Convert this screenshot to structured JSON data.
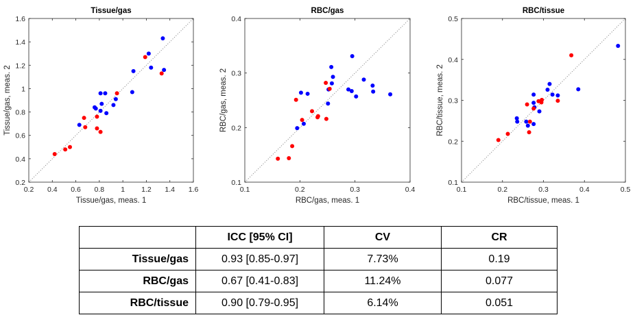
{
  "chart_data": [
    {
      "type": "scatter",
      "title": "Tissue/gas",
      "xlabel": "Tissue/gas, meas. 1",
      "ylabel": "Tissue/gas, meas. 2",
      "xlim": [
        0.2,
        1.6
      ],
      "ylim": [
        0.2,
        1.6
      ],
      "xticks": [
        "0.2",
        "0.4",
        "0.6",
        "0.8",
        "1",
        "1.2",
        "1.4",
        "1.6"
      ],
      "yticks": [
        "0.2",
        "0.4",
        "0.6",
        "0.8",
        "1",
        "1.2",
        "1.4",
        "1.6"
      ],
      "identity_line": true,
      "series": [
        {
          "name": "blue",
          "color": "#0000ff",
          "points": [
            [
              1.34,
              1.43
            ],
            [
              1.22,
              1.3
            ],
            [
              1.24,
              1.18
            ],
            [
              1.35,
              1.16
            ],
            [
              1.09,
              1.15
            ],
            [
              1.08,
              0.97
            ],
            [
              0.81,
              0.96
            ],
            [
              0.85,
              0.96
            ],
            [
              0.82,
              0.87
            ],
            [
              0.92,
              0.86
            ],
            [
              0.94,
              0.91
            ],
            [
              0.76,
              0.84
            ],
            [
              0.77,
              0.83
            ],
            [
              0.81,
              0.81
            ],
            [
              0.86,
              0.79
            ],
            [
              0.63,
              0.69
            ]
          ]
        },
        {
          "name": "red",
          "color": "#ff0000",
          "points": [
            [
              1.19,
              1.27
            ],
            [
              1.33,
              1.13
            ],
            [
              0.95,
              0.96
            ],
            [
              0.67,
              0.75
            ],
            [
              0.78,
              0.76
            ],
            [
              0.68,
              0.67
            ],
            [
              0.78,
              0.66
            ],
            [
              0.81,
              0.63
            ],
            [
              0.55,
              0.5
            ],
            [
              0.51,
              0.48
            ],
            [
              0.42,
              0.44
            ]
          ]
        }
      ]
    },
    {
      "type": "scatter",
      "title": "RBC/gas",
      "xlabel": "RBC/gas, meas. 1",
      "ylabel": "RBC/gas, meas. 2",
      "xlim": [
        0.1,
        0.4
      ],
      "ylim": [
        0.1,
        0.4
      ],
      "xticks": [
        "0.1",
        "0.2",
        "0.3",
        "0.4"
      ],
      "yticks": [
        "0.1",
        "0.2",
        "0.3",
        "0.4"
      ],
      "identity_line": true,
      "series": [
        {
          "name": "blue",
          "color": "#0000ff",
          "points": [
            [
              0.295,
              0.331
            ],
            [
              0.257,
              0.311
            ],
            [
              0.26,
              0.293
            ],
            [
              0.316,
              0.288
            ],
            [
              0.252,
              0.27
            ],
            [
              0.258,
              0.281
            ],
            [
              0.288,
              0.27
            ],
            [
              0.294,
              0.267
            ],
            [
              0.332,
              0.277
            ],
            [
              0.333,
              0.266
            ],
            [
              0.364,
              0.261
            ],
            [
              0.302,
              0.257
            ],
            [
              0.202,
              0.264
            ],
            [
              0.214,
              0.262
            ],
            [
              0.251,
              0.244
            ],
            [
              0.207,
              0.207
            ],
            [
              0.195,
              0.199
            ]
          ]
        },
        {
          "name": "red",
          "color": "#ff0000",
          "points": [
            [
              0.247,
              0.282
            ],
            [
              0.254,
              0.271
            ],
            [
              0.193,
              0.251
            ],
            [
              0.222,
              0.23
            ],
            [
              0.233,
              0.221
            ],
            [
              0.232,
              0.219
            ],
            [
              0.248,
              0.216
            ],
            [
              0.204,
              0.214
            ],
            [
              0.186,
              0.166
            ],
            [
              0.18,
              0.144
            ],
            [
              0.16,
              0.143
            ]
          ]
        }
      ]
    },
    {
      "type": "scatter",
      "title": "RBC/tissue",
      "xlabel": "RBC/tissue, meas. 1",
      "ylabel": "RBC/tissue, meas. 2",
      "xlim": [
        0.1,
        0.5
      ],
      "ylim": [
        0.1,
        0.5
      ],
      "xticks": [
        "0.1",
        "0.2",
        "0.3",
        "0.4",
        "0.5"
      ],
      "yticks": [
        "0.1",
        "0.2",
        "0.3",
        "0.4",
        "0.5"
      ],
      "identity_line": true,
      "series": [
        {
          "name": "blue",
          "color": "#0000ff",
          "points": [
            [
              0.482,
              0.433
            ],
            [
              0.385,
              0.327
            ],
            [
              0.315,
              0.34
            ],
            [
              0.31,
              0.326
            ],
            [
              0.276,
              0.314
            ],
            [
              0.322,
              0.314
            ],
            [
              0.335,
              0.312
            ],
            [
              0.276,
              0.294
            ],
            [
              0.278,
              0.283
            ],
            [
              0.29,
              0.273
            ],
            [
              0.235,
              0.256
            ],
            [
              0.236,
              0.248
            ],
            [
              0.258,
              0.248
            ],
            [
              0.262,
              0.238
            ],
            [
              0.276,
              0.242
            ]
          ]
        },
        {
          "name": "red",
          "color": "#ff0000",
          "points": [
            [
              0.368,
              0.41
            ],
            [
              0.335,
              0.299
            ],
            [
              0.288,
              0.298
            ],
            [
              0.296,
              0.301
            ],
            [
              0.295,
              0.295
            ],
            [
              0.26,
              0.29
            ],
            [
              0.276,
              0.28
            ],
            [
              0.267,
              0.248
            ],
            [
              0.265,
              0.222
            ],
            [
              0.213,
              0.218
            ],
            [
              0.19,
              0.203
            ]
          ]
        }
      ]
    }
  ],
  "table": {
    "headers": [
      "",
      "ICC [95% CI]",
      "CV",
      "CR"
    ],
    "rows": [
      {
        "label": "Tissue/gas",
        "icc": "0.93 [0.85-0.97]",
        "cv": "7.73%",
        "cr": "0.19"
      },
      {
        "label": "RBC/gas",
        "icc": "0.67 [0.41-0.83]",
        "cv": "11.24%",
        "cr": "0.077"
      },
      {
        "label": "RBC/tissue",
        "icc": "0.90 [0.79-0.95]",
        "cv": "6.14%",
        "cr": "0.051"
      }
    ]
  }
}
